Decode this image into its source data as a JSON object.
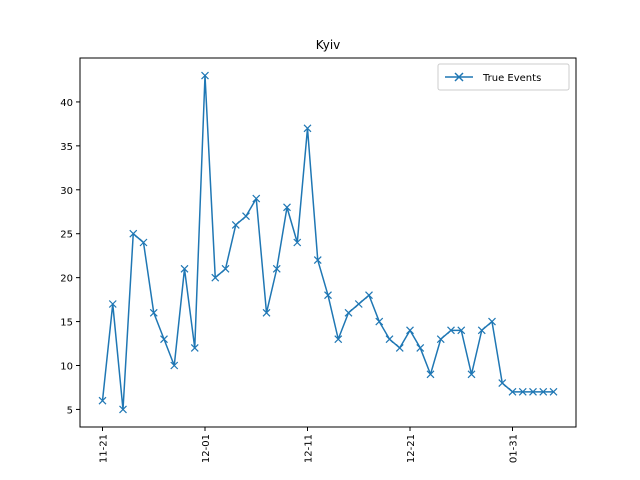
{
  "chart_data": {
    "type": "line",
    "title": "Kyiv",
    "xlabel": "",
    "ylabel": "",
    "x_ticks": [
      "11-21",
      "12-01",
      "12-11",
      "12-21",
      "01-31"
    ],
    "y_ticks": [
      5,
      10,
      15,
      20,
      25,
      30,
      35,
      40
    ],
    "ylim": [
      3,
      45
    ],
    "legend_position": "top-right",
    "grid": false,
    "series": [
      {
        "name": "True Events",
        "color": "#1f77b4",
        "marker": "x",
        "values": [
          6,
          17,
          5,
          25,
          24,
          16,
          13,
          10,
          21,
          12,
          43,
          20,
          21,
          26,
          27,
          29,
          16,
          21,
          28,
          24,
          37,
          22,
          18,
          13,
          16,
          17,
          18,
          15,
          13,
          12,
          14,
          12,
          9,
          13,
          14,
          14,
          9,
          14,
          15,
          8,
          7,
          7,
          7,
          7,
          7
        ]
      }
    ]
  }
}
